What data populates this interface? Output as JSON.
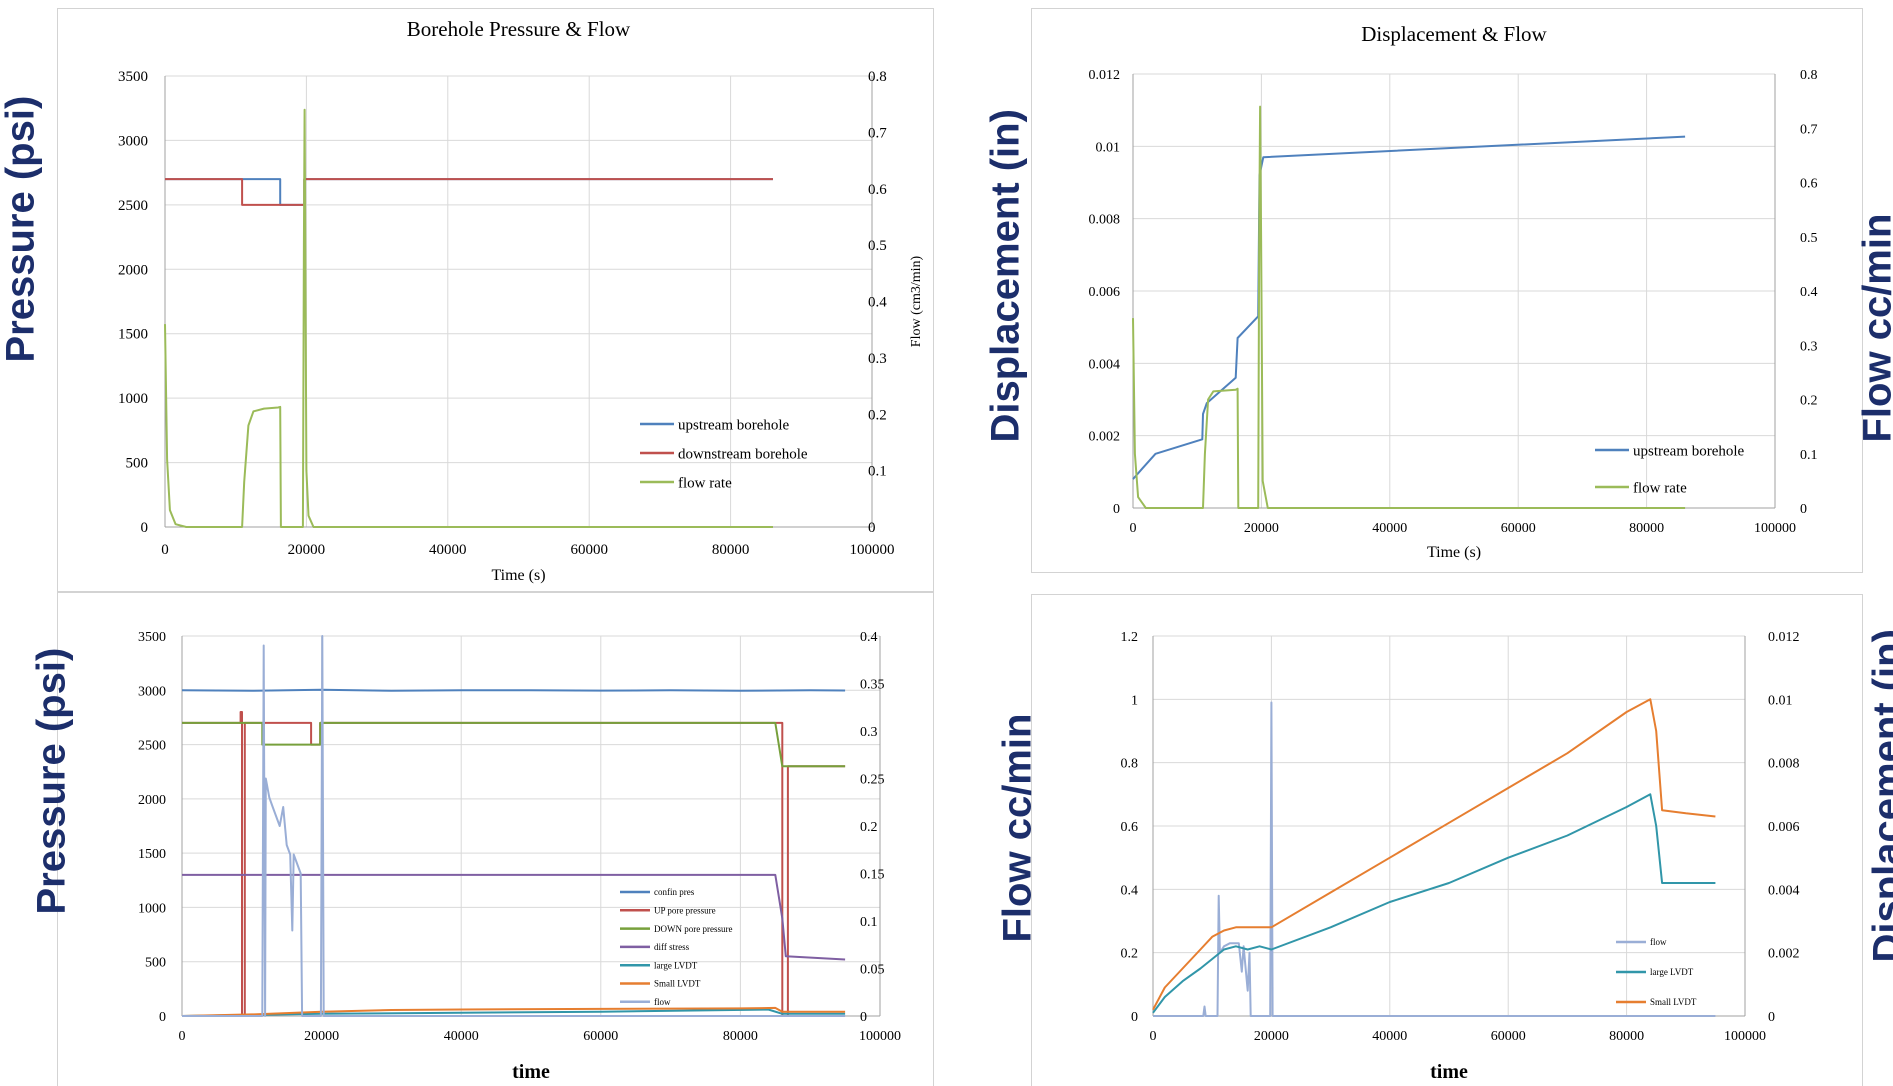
{
  "colors": {
    "upstream": "#4f81bd",
    "downstream": "#c0504d",
    "flow_green": "#9bbb59",
    "confin": "#4f81bd",
    "up_pore": "#c0504d",
    "down_pore": "#77a03c",
    "diff_stress": "#7f5fa2",
    "large_lvdt": "#3196a9",
    "small_lvdt": "#e67e30",
    "flow_light": "#9aaed6",
    "grid": "#d9d9d9",
    "side_label": "#1c2e6b"
  },
  "side_labels": {
    "tl": "Pressure (psi)",
    "tr_left": "Displacement (in)",
    "tr_right": "Flow cc/min",
    "bl": "Pressure (psi)",
    "br_left": "Flow cc/min",
    "br_right": "Displacement (in)"
  },
  "chart_data": [
    {
      "id": "borehole",
      "type": "line",
      "title": "Borehole Pressure & Flow",
      "xlabel": "Time (s)",
      "ylabel": "",
      "y2label": "Flow (cm3/min)",
      "xlim": [
        0,
        100000
      ],
      "ylim": [
        0,
        3500
      ],
      "y2lim": [
        0,
        0.8
      ],
      "xticks": [
        0,
        20000,
        40000,
        60000,
        80000,
        100000
      ],
      "yticks": [
        0,
        500,
        1000,
        1500,
        2000,
        2500,
        3000,
        3500
      ],
      "y2ticks": [
        0,
        0.1,
        0.2,
        0.3,
        0.4,
        0.5,
        0.6,
        0.7,
        0.8
      ],
      "grid": true,
      "legend_position": "bottom-right",
      "series": [
        {
          "name": "upstream borehole",
          "axis": "y",
          "color_key": "upstream",
          "points": [
            [
              0,
              2700
            ],
            [
              10900,
              2700
            ],
            [
              10900,
              2700
            ],
            [
              16300,
              2700
            ],
            [
              16300,
              2500
            ],
            [
              19700,
              2500
            ],
            [
              19700,
              2700
            ],
            [
              86000,
              2700
            ]
          ]
        },
        {
          "name": "downstream borehole",
          "axis": "y",
          "color_key": "downstream",
          "points": [
            [
              0,
              2700
            ],
            [
              10900,
              2700
            ],
            [
              10900,
              2500
            ],
            [
              19700,
              2500
            ],
            [
              19700,
              2700
            ],
            [
              86000,
              2700
            ]
          ]
        },
        {
          "name": "flow rate",
          "axis": "y2",
          "color_key": "flow_green",
          "points": [
            [
              0,
              0.36
            ],
            [
              300,
              0.12
            ],
            [
              700,
              0.03
            ],
            [
              1500,
              0.005
            ],
            [
              3000,
              0
            ],
            [
              10900,
              0
            ],
            [
              11200,
              0.08
            ],
            [
              11800,
              0.18
            ],
            [
              12500,
              0.205
            ],
            [
              14000,
              0.21
            ],
            [
              16000,
              0.212
            ],
            [
              16300,
              0.213
            ],
            [
              16400,
              0
            ],
            [
              19500,
              0
            ],
            [
              19650,
              0.5
            ],
            [
              19750,
              0.74
            ],
            [
              19850,
              0.5
            ],
            [
              20000,
              0.1
            ],
            [
              20300,
              0.02
            ],
            [
              21000,
              0
            ],
            [
              86000,
              0
            ]
          ]
        }
      ]
    },
    {
      "id": "displacement",
      "type": "line",
      "title": "Displacement & Flow",
      "xlabel": "Time (s)",
      "ylabel": "",
      "y2label": "",
      "xlim": [
        0,
        100000
      ],
      "ylim": [
        0,
        0.012
      ],
      "y2lim": [
        0,
        0.8
      ],
      "xticks": [
        0,
        20000,
        40000,
        60000,
        80000,
        100000
      ],
      "yticks": [
        0,
        0.002,
        0.004,
        0.006,
        0.008,
        0.01,
        0.012
      ],
      "y2ticks": [
        0,
        0.1,
        0.2,
        0.3,
        0.4,
        0.5,
        0.6,
        0.7,
        0.8
      ],
      "grid": true,
      "legend_position": "bottom-right",
      "series": [
        {
          "name": "upstream borehole",
          "axis": "y",
          "color_key": "upstream",
          "points": [
            [
              0,
              0.0008
            ],
            [
              1500,
              0.0011
            ],
            [
              3500,
              0.0015
            ],
            [
              10800,
              0.0019
            ],
            [
              10900,
              0.0026
            ],
            [
              11500,
              0.0029
            ],
            [
              16000,
              0.0036
            ],
            [
              16300,
              0.0047
            ],
            [
              19500,
              0.0053
            ],
            [
              19700,
              0.0092
            ],
            [
              20300,
              0.0097
            ],
            [
              86000,
              0.01027
            ]
          ]
        },
        {
          "name": "flow rate",
          "axis": "y2",
          "color_key": "flow_green",
          "points": [
            [
              0,
              0.35
            ],
            [
              300,
              0.1
            ],
            [
              800,
              0.02
            ],
            [
              2000,
              0
            ],
            [
              10900,
              0
            ],
            [
              11200,
              0.1
            ],
            [
              11700,
              0.2
            ],
            [
              12500,
              0.215
            ],
            [
              16000,
              0.218
            ],
            [
              16300,
              0.22
            ],
            [
              16400,
              0
            ],
            [
              19500,
              0
            ],
            [
              19650,
              0.5
            ],
            [
              19800,
              0.74
            ],
            [
              19950,
              0.5
            ],
            [
              20200,
              0.05
            ],
            [
              21000,
              0
            ],
            [
              86000,
              0
            ]
          ]
        }
      ]
    },
    {
      "id": "pressure_detail",
      "type": "line",
      "title": "",
      "xlabel": "time",
      "ylabel": "",
      "y2label": "",
      "xlim": [
        0,
        100000
      ],
      "ylim": [
        0,
        3500
      ],
      "y2lim": [
        0,
        0.4
      ],
      "xticks": [
        0,
        20000,
        40000,
        60000,
        80000,
        100000
      ],
      "yticks": [
        0,
        500,
        1000,
        1500,
        2000,
        2500,
        3000,
        3500
      ],
      "y2ticks": [
        0,
        0.05,
        0.1,
        0.15,
        0.2,
        0.25,
        0.3,
        0.35,
        0.4
      ],
      "grid": true,
      "legend_position": "bottom-right",
      "series": [
        {
          "name": "confin pres",
          "axis": "y",
          "color_key": "confin",
          "points": [
            [
              0,
              3000
            ],
            [
              10000,
              2995
            ],
            [
              20000,
              3005
            ],
            [
              30000,
              2995
            ],
            [
              40000,
              3000
            ],
            [
              50000,
              3000
            ],
            [
              60000,
              2997
            ],
            [
              70000,
              3000
            ],
            [
              80000,
              2995
            ],
            [
              90000,
              3000
            ],
            [
              95000,
              2998
            ]
          ]
        },
        {
          "name": "UP pore pressure",
          "axis": "y",
          "color_key": "up_pore",
          "points": [
            [
              0,
              2700
            ],
            [
              8400,
              2700
            ],
            [
              8400,
              2800
            ],
            [
              8600,
              2800
            ],
            [
              8600,
              0
            ],
            [
              9000,
              0
            ],
            [
              9000,
              2700
            ],
            [
              18500,
              2700
            ],
            [
              18500,
              2500
            ],
            [
              19800,
              2500
            ],
            [
              19800,
              2700
            ],
            [
              86000,
              2700
            ],
            [
              86000,
              0
            ],
            [
              86800,
              0
            ],
            [
              86800,
              2300
            ],
            [
              95000,
              2300
            ]
          ]
        },
        {
          "name": "DOWN pore pressure",
          "axis": "y",
          "color_key": "down_pore",
          "points": [
            [
              0,
              2700
            ],
            [
              11500,
              2700
            ],
            [
              11500,
              2500
            ],
            [
              19800,
              2500
            ],
            [
              19800,
              2700
            ],
            [
              85000,
              2700
            ],
            [
              86000,
              2300
            ],
            [
              95000,
              2300
            ]
          ]
        },
        {
          "name": "diff stress",
          "axis": "y",
          "color_key": "diff_stress",
          "points": [
            [
              0,
              1300
            ],
            [
              85000,
              1300
            ],
            [
              86000,
              900
            ],
            [
              86500,
              550
            ],
            [
              95000,
              520
            ]
          ]
        },
        {
          "name": "large LVDT",
          "axis": "y",
          "color_key": "large_lvdt",
          "points": [
            [
              0,
              0
            ],
            [
              10000,
              10
            ],
            [
              20000,
              20
            ],
            [
              40000,
              30
            ],
            [
              60000,
              40
            ],
            [
              84000,
              60
            ],
            [
              86000,
              20
            ],
            [
              95000,
              20
            ]
          ]
        },
        {
          "name": "Small LVDT",
          "axis": "y",
          "color_key": "small_lvdt",
          "points": [
            [
              0,
              0
            ],
            [
              10000,
              15
            ],
            [
              20000,
              40
            ],
            [
              30000,
              55
            ],
            [
              40000,
              60
            ],
            [
              60000,
              65
            ],
            [
              80000,
              70
            ],
            [
              85000,
              75
            ],
            [
              86000,
              40
            ],
            [
              95000,
              40
            ]
          ]
        },
        {
          "name": "flow",
          "axis": "y2",
          "color_key": "flow_light",
          "points": [
            [
              0,
              0
            ],
            [
              11500,
              0
            ],
            [
              11700,
              0.39
            ],
            [
              11900,
              0
            ],
            [
              12000,
              0.25
            ],
            [
              12500,
              0.23
            ],
            [
              13000,
              0.22
            ],
            [
              13500,
              0.21
            ],
            [
              14000,
              0.2
            ],
            [
              14500,
              0.22
            ],
            [
              15000,
              0.18
            ],
            [
              15500,
              0.17
            ],
            [
              15800,
              0.09
            ],
            [
              16000,
              0.17
            ],
            [
              16500,
              0.16
            ],
            [
              17000,
              0.15
            ],
            [
              17200,
              0
            ],
            [
              19900,
              0
            ],
            [
              20100,
              0.4
            ],
            [
              20300,
              0
            ],
            [
              95000,
              0
            ]
          ]
        }
      ]
    },
    {
      "id": "flow_displacement",
      "type": "line",
      "title": "",
      "xlabel": "time",
      "ylabel": "",
      "y2label": "",
      "xlim": [
        0,
        100000
      ],
      "ylim": [
        0,
        1.2
      ],
      "y2lim": [
        0,
        0.012
      ],
      "xticks": [
        0,
        20000,
        40000,
        60000,
        80000,
        100000
      ],
      "yticks": [
        0,
        0.2,
        0.4,
        0.6,
        0.8,
        1,
        1.2
      ],
      "y2ticks": [
        0,
        0.002,
        0.004,
        0.006,
        0.008,
        0.01,
        0.012
      ],
      "grid": true,
      "legend_position": "bottom-right",
      "series": [
        {
          "name": "flow",
          "axis": "y",
          "color_key": "flow_light",
          "points": [
            [
              0,
              0
            ],
            [
              8500,
              0
            ],
            [
              8700,
              0.03
            ],
            [
              8900,
              0
            ],
            [
              10900,
              0
            ],
            [
              11100,
              0.38
            ],
            [
              11300,
              0.2
            ],
            [
              12000,
              0.22
            ],
            [
              13000,
              0.23
            ],
            [
              14500,
              0.23
            ],
            [
              15000,
              0.14
            ],
            [
              15300,
              0.22
            ],
            [
              16000,
              0.08
            ],
            [
              16300,
              0.2
            ],
            [
              16500,
              0
            ],
            [
              19800,
              0
            ],
            [
              20000,
              0.99
            ],
            [
              20200,
              0
            ],
            [
              95000,
              0
            ]
          ]
        },
        {
          "name": "large LVDT",
          "axis": "y2",
          "color_key": "large_lvdt",
          "points": [
            [
              0,
              0.0001
            ],
            [
              2000,
              0.0006
            ],
            [
              5000,
              0.0011
            ],
            [
              8000,
              0.0015
            ],
            [
              10000,
              0.0018
            ],
            [
              12000,
              0.0021
            ],
            [
              14000,
              0.0022
            ],
            [
              16000,
              0.0021
            ],
            [
              18000,
              0.0022
            ],
            [
              20000,
              0.0021
            ],
            [
              30000,
              0.0028
            ],
            [
              40000,
              0.0036
            ],
            [
              50000,
              0.0042
            ],
            [
              60000,
              0.005
            ],
            [
              70000,
              0.0057
            ],
            [
              80000,
              0.0066
            ],
            [
              84000,
              0.007
            ],
            [
              85000,
              0.006
            ],
            [
              86000,
              0.0042
            ],
            [
              90000,
              0.0042
            ],
            [
              95000,
              0.0042
            ]
          ]
        },
        {
          "name": "Small LVDT",
          "axis": "y2",
          "color_key": "small_lvdt",
          "points": [
            [
              0,
              0.0002
            ],
            [
              2000,
              0.0009
            ],
            [
              5000,
              0.0015
            ],
            [
              8000,
              0.0021
            ],
            [
              10000,
              0.0025
            ],
            [
              12000,
              0.0027
            ],
            [
              14000,
              0.0028
            ],
            [
              16000,
              0.0028
            ],
            [
              18000,
              0.0028
            ],
            [
              20000,
              0.0028
            ],
            [
              30000,
              0.0039
            ],
            [
              40000,
              0.005
            ],
            [
              50000,
              0.0061
            ],
            [
              60000,
              0.0072
            ],
            [
              70000,
              0.0083
            ],
            [
              80000,
              0.0096
            ],
            [
              84000,
              0.01
            ],
            [
              85000,
              0.009
            ],
            [
              86000,
              0.0065
            ],
            [
              90000,
              0.0064
            ],
            [
              95000,
              0.0063
            ]
          ]
        }
      ]
    }
  ]
}
